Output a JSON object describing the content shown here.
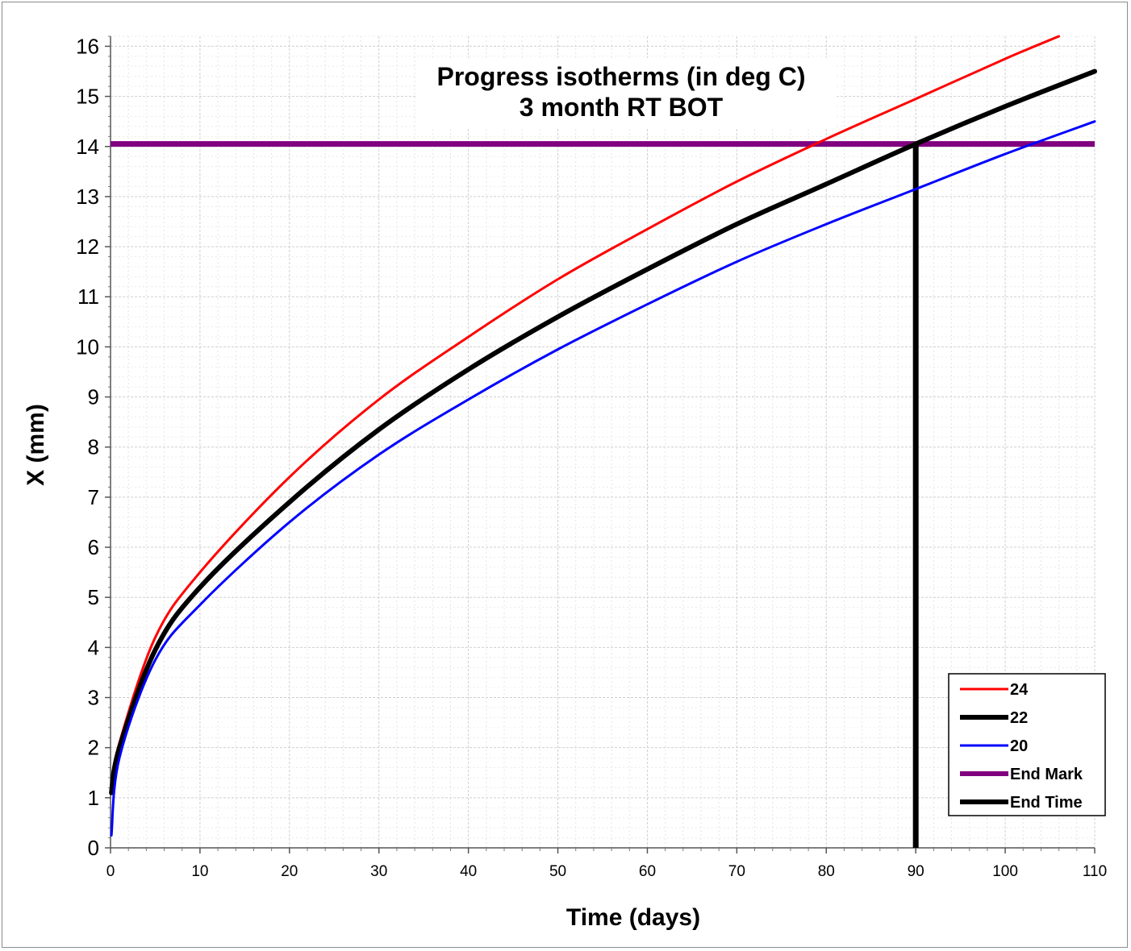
{
  "chart_data": {
    "type": "line",
    "title_lines": [
      "Progress isotherms (in deg C)",
      "3 month RT BOT"
    ],
    "xlabel": "Time (days)",
    "ylabel": "X (mm)",
    "xlim": [
      0,
      110
    ],
    "ylim": [
      0,
      16.2
    ],
    "x_ticks": [
      0,
      10,
      20,
      30,
      40,
      50,
      60,
      70,
      80,
      90,
      100,
      110
    ],
    "y_ticks": [
      0,
      1,
      2,
      3,
      4,
      5,
      6,
      7,
      8,
      9,
      10,
      11,
      12,
      13,
      14,
      15,
      16
    ],
    "grid": true,
    "legend_position": "bottom-right",
    "series": [
      {
        "name": "24",
        "color": "#ff0000",
        "style": "thin",
        "x": [
          0.1,
          1,
          5,
          10,
          20,
          30,
          40,
          50,
          60,
          70,
          80,
          90,
          100,
          106
        ],
        "y": [
          1.2,
          2.1,
          4.2,
          5.5,
          7.4,
          8.95,
          10.2,
          11.35,
          12.35,
          13.3,
          14.15,
          14.95,
          15.75,
          16.2
        ]
      },
      {
        "name": "22",
        "color": "#000000",
        "style": "thick",
        "x": [
          0.1,
          1,
          5,
          10,
          20,
          30,
          40,
          50,
          60,
          70,
          80,
          90,
          100,
          110
        ],
        "y": [
          1.1,
          2.0,
          3.95,
          5.2,
          6.9,
          8.35,
          9.55,
          10.6,
          11.55,
          12.45,
          13.25,
          14.05,
          14.8,
          15.5
        ]
      },
      {
        "name": "20",
        "color": "#0000ff",
        "style": "thin",
        "x": [
          0.1,
          1,
          5,
          10,
          20,
          30,
          40,
          50,
          60,
          70,
          80,
          90,
          100,
          110
        ],
        "y": [
          0.25,
          1.8,
          3.75,
          4.85,
          6.5,
          7.85,
          8.95,
          9.95,
          10.85,
          11.7,
          12.45,
          13.15,
          13.85,
          14.5
        ]
      }
    ],
    "reference_lines": [
      {
        "name": "End Mark",
        "color": "#800080",
        "orientation": "horizontal",
        "y": 14.05
      },
      {
        "name": "End Time",
        "color": "#000000",
        "orientation": "vertical",
        "x": 90,
        "y_range": [
          0,
          14.05
        ]
      }
    ],
    "legend_entries": [
      {
        "label": "24",
        "color": "#ff0000",
        "style": "thin"
      },
      {
        "label": "22",
        "color": "#000000",
        "style": "thick"
      },
      {
        "label": "20",
        "color": "#0000ff",
        "style": "thin"
      },
      {
        "label": "End Mark",
        "color": "#800080",
        "style": "thick"
      },
      {
        "label": "End Time",
        "color": "#000000",
        "style": "thick"
      }
    ]
  }
}
